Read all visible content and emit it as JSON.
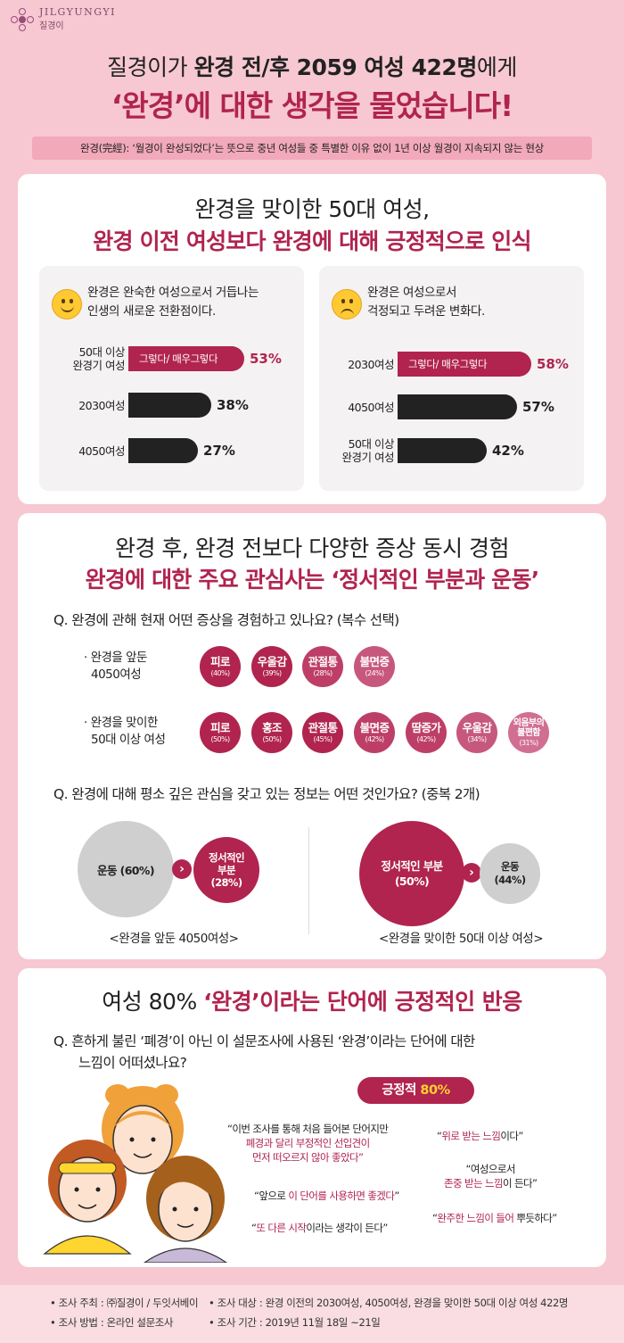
{
  "brand": {
    "name": "JILGYUNGYI",
    "sub": "질경이"
  },
  "header": {
    "line1_a": "질경이가 ",
    "line1_b": "완경 전/후 2059 여성 422명",
    "line1_c": "에게",
    "line2": "‘완경’에 대한 생각을 물었습니다!",
    "definition": "완경(完經): ‘월경이 완성되었다’는 뜻으로 중년 여성들 중 특별한 이유 없이 1년 이상 월경이 지속되지 않는 현상"
  },
  "section1": {
    "title1": "완경을 맞이한 50대 여성,",
    "title2": "완경 이전 여성보다 완경에 대해 긍정적으로 인식",
    "left": {
      "statement_1": "완경은 완숙한 여성으로서 거듭나는",
      "statement_2": "인생의 새로운 전환점이다.",
      "bars": [
        {
          "label_1": "50대 이상",
          "label_2": "완경기 여성",
          "value": "53%",
          "inner": "그렇다/ 매우그렇다",
          "highlight": true
        },
        {
          "label_1": "2030여성",
          "label_2": "",
          "value": "38%",
          "inner": "",
          "highlight": false
        },
        {
          "label_1": "4050여성",
          "label_2": "",
          "value": "27%",
          "inner": "",
          "highlight": false
        }
      ]
    },
    "right": {
      "statement_1": "완경은 여성으로서",
      "statement_2": "걱정되고 두려운 변화다.",
      "bars": [
        {
          "label_1": "2030여성",
          "label_2": "",
          "value": "58%",
          "inner": "그렇다/ 매우그렇다",
          "highlight": true
        },
        {
          "label_1": "4050여성",
          "label_2": "",
          "value": "57%",
          "inner": "",
          "highlight": false
        },
        {
          "label_1": "50대 이상",
          "label_2": "완경기 여성",
          "value": "42%",
          "inner": "",
          "highlight": false
        }
      ]
    }
  },
  "section2": {
    "title1": "완경 후, 완경 전보다 다양한 증상 동시 경험",
    "title2": "완경에 대한 주요 관심사는 ‘정서적인 부분과 운동’",
    "q1": "Q. 완경에 관해 현재 어떤 증상을 경험하고 있나요? (복수 선택)",
    "group1_1": "· 완경을 앞둔",
    "group1_2": "4050여성",
    "group1": [
      {
        "name": "피로",
        "pct": "(40%)"
      },
      {
        "name": "우울감",
        "pct": "(39%)"
      },
      {
        "name": "관절통",
        "pct": "(28%)"
      },
      {
        "name": "불면증",
        "pct": "(24%)"
      }
    ],
    "group2_1": "· 완경을 맞이한",
    "group2_2": "50대 이상 여성",
    "group2": [
      {
        "name": "피로",
        "pct": "(50%)"
      },
      {
        "name": "홍조",
        "pct": "(50%)"
      },
      {
        "name": "관절통",
        "pct": "(45%)"
      },
      {
        "name": "불면증",
        "pct": "(42%)"
      },
      {
        "name": "땀증가",
        "pct": "(42%)"
      },
      {
        "name": "우울감",
        "pct": "(34%)"
      },
      {
        "name": "외음부의 불편함",
        "pct": "(31%)"
      }
    ],
    "q2": "Q. 완경에 대해 평소 깊은 관심을 갖고 있는 정보는 어떤 것인가요? (중복 2개)",
    "left": {
      "big": "운동 (60%)",
      "small_1": "정서적인",
      "small_2": "부분",
      "small_3": "(28%)",
      "caption": "<완경을 앞둔 4050여성>"
    },
    "right": {
      "big_1": "정서적인 부분",
      "big_2": "(50%)",
      "small_1": "운동",
      "small_2": "(44%)",
      "caption": "<완경을 맞이한 50대 이상 여성>"
    },
    "arrow": "›"
  },
  "section3": {
    "title_a": "여성 80% ",
    "title_b": "‘완경’이라는 단어에 긍정적인 반응",
    "q_1": "Q. 흔하게 불린 ‘폐경’이 아닌  이 설문조사에 사용된 ‘완경’이라는 단어에 대한",
    "q_2": "느낌이 어떠셨나요?",
    "badge_a": "긍정적 ",
    "badge_b": "80%",
    "quotes": {
      "q1_1": "“이번 조사를 통해 처음 들어본 단어지만",
      "q1_2": "폐경과 달리 부정적인 선입견이",
      "q1_3": "먼저 떠오르지 않아 좋았다”",
      "q2_a": "“",
      "q2_b": "위로 받는 느낌",
      "q2_c": "이다”",
      "q3_1": "“여성으로서",
      "q3_2a": "존중 받는 느낌",
      "q3_2b": "이 든다”",
      "q4_a": "“앞으로 ",
      "q4_b": "이 단어를 사용하면 좋겠다",
      "q4_c": "”",
      "q5_a": "“",
      "q5_b": "또 다른 시작",
      "q5_c": "이라는 생각이 든다”",
      "q6_a": "“",
      "q6_b": "완주한 느낌이 들어",
      "q6_c": " 뿌듯하다”"
    }
  },
  "footer": {
    "host": "• 조사 주최 : ㈜질경이 / 두잇서베이",
    "method": "• 조사 방법 : 온라인 설문조사",
    "target": "• 조사 대상 : 완경 이전의 2030여성, 4050여성, 완경을 맞이한 50대 이상 여성 422명",
    "period": "• 조사 기간 : 2019년 11월 18일 ~21일"
  },
  "colors": {
    "accent": "#b0244f",
    "background": "#f7c8d2",
    "panel": "#f5f2f3",
    "bar_dark": "#222222",
    "gold": "#ffd12e"
  }
}
